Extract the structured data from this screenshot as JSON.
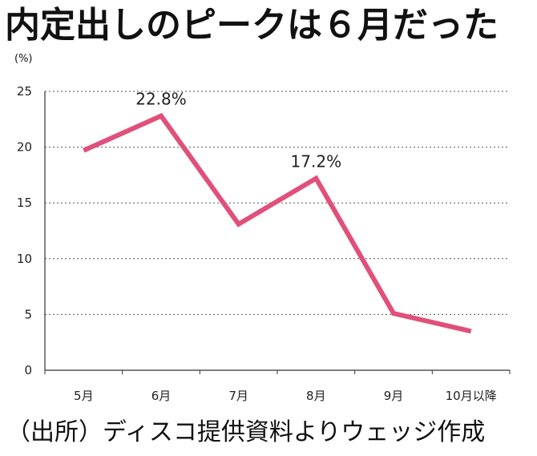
{
  "header": {
    "title": "内定出しのピークは６月だった"
  },
  "footer": {
    "source": "（出所）ディスコ提供資料よりウェッジ作成"
  },
  "chart_data": {
    "type": "line",
    "title": "内定出しのピークは６月だった",
    "unit_label": "(%)",
    "xlabel": "",
    "ylabel": "",
    "categories": [
      "5月",
      "6月",
      "7月",
      "8月",
      "9月",
      "10月以降"
    ],
    "series": [
      {
        "values": [
          19.7,
          22.8,
          13.1,
          17.2,
          5.1,
          3.5
        ],
        "color": "#e0507a"
      }
    ],
    "data_labels": [
      {
        "index": 1,
        "text": "22.8%"
      },
      {
        "index": 3,
        "text": "17.2%"
      }
    ],
    "yticks": [
      0,
      5,
      10,
      15,
      20,
      25
    ],
    "ylim": [
      0,
      25
    ],
    "grid": true,
    "grid_style": "dotted horizontal"
  }
}
